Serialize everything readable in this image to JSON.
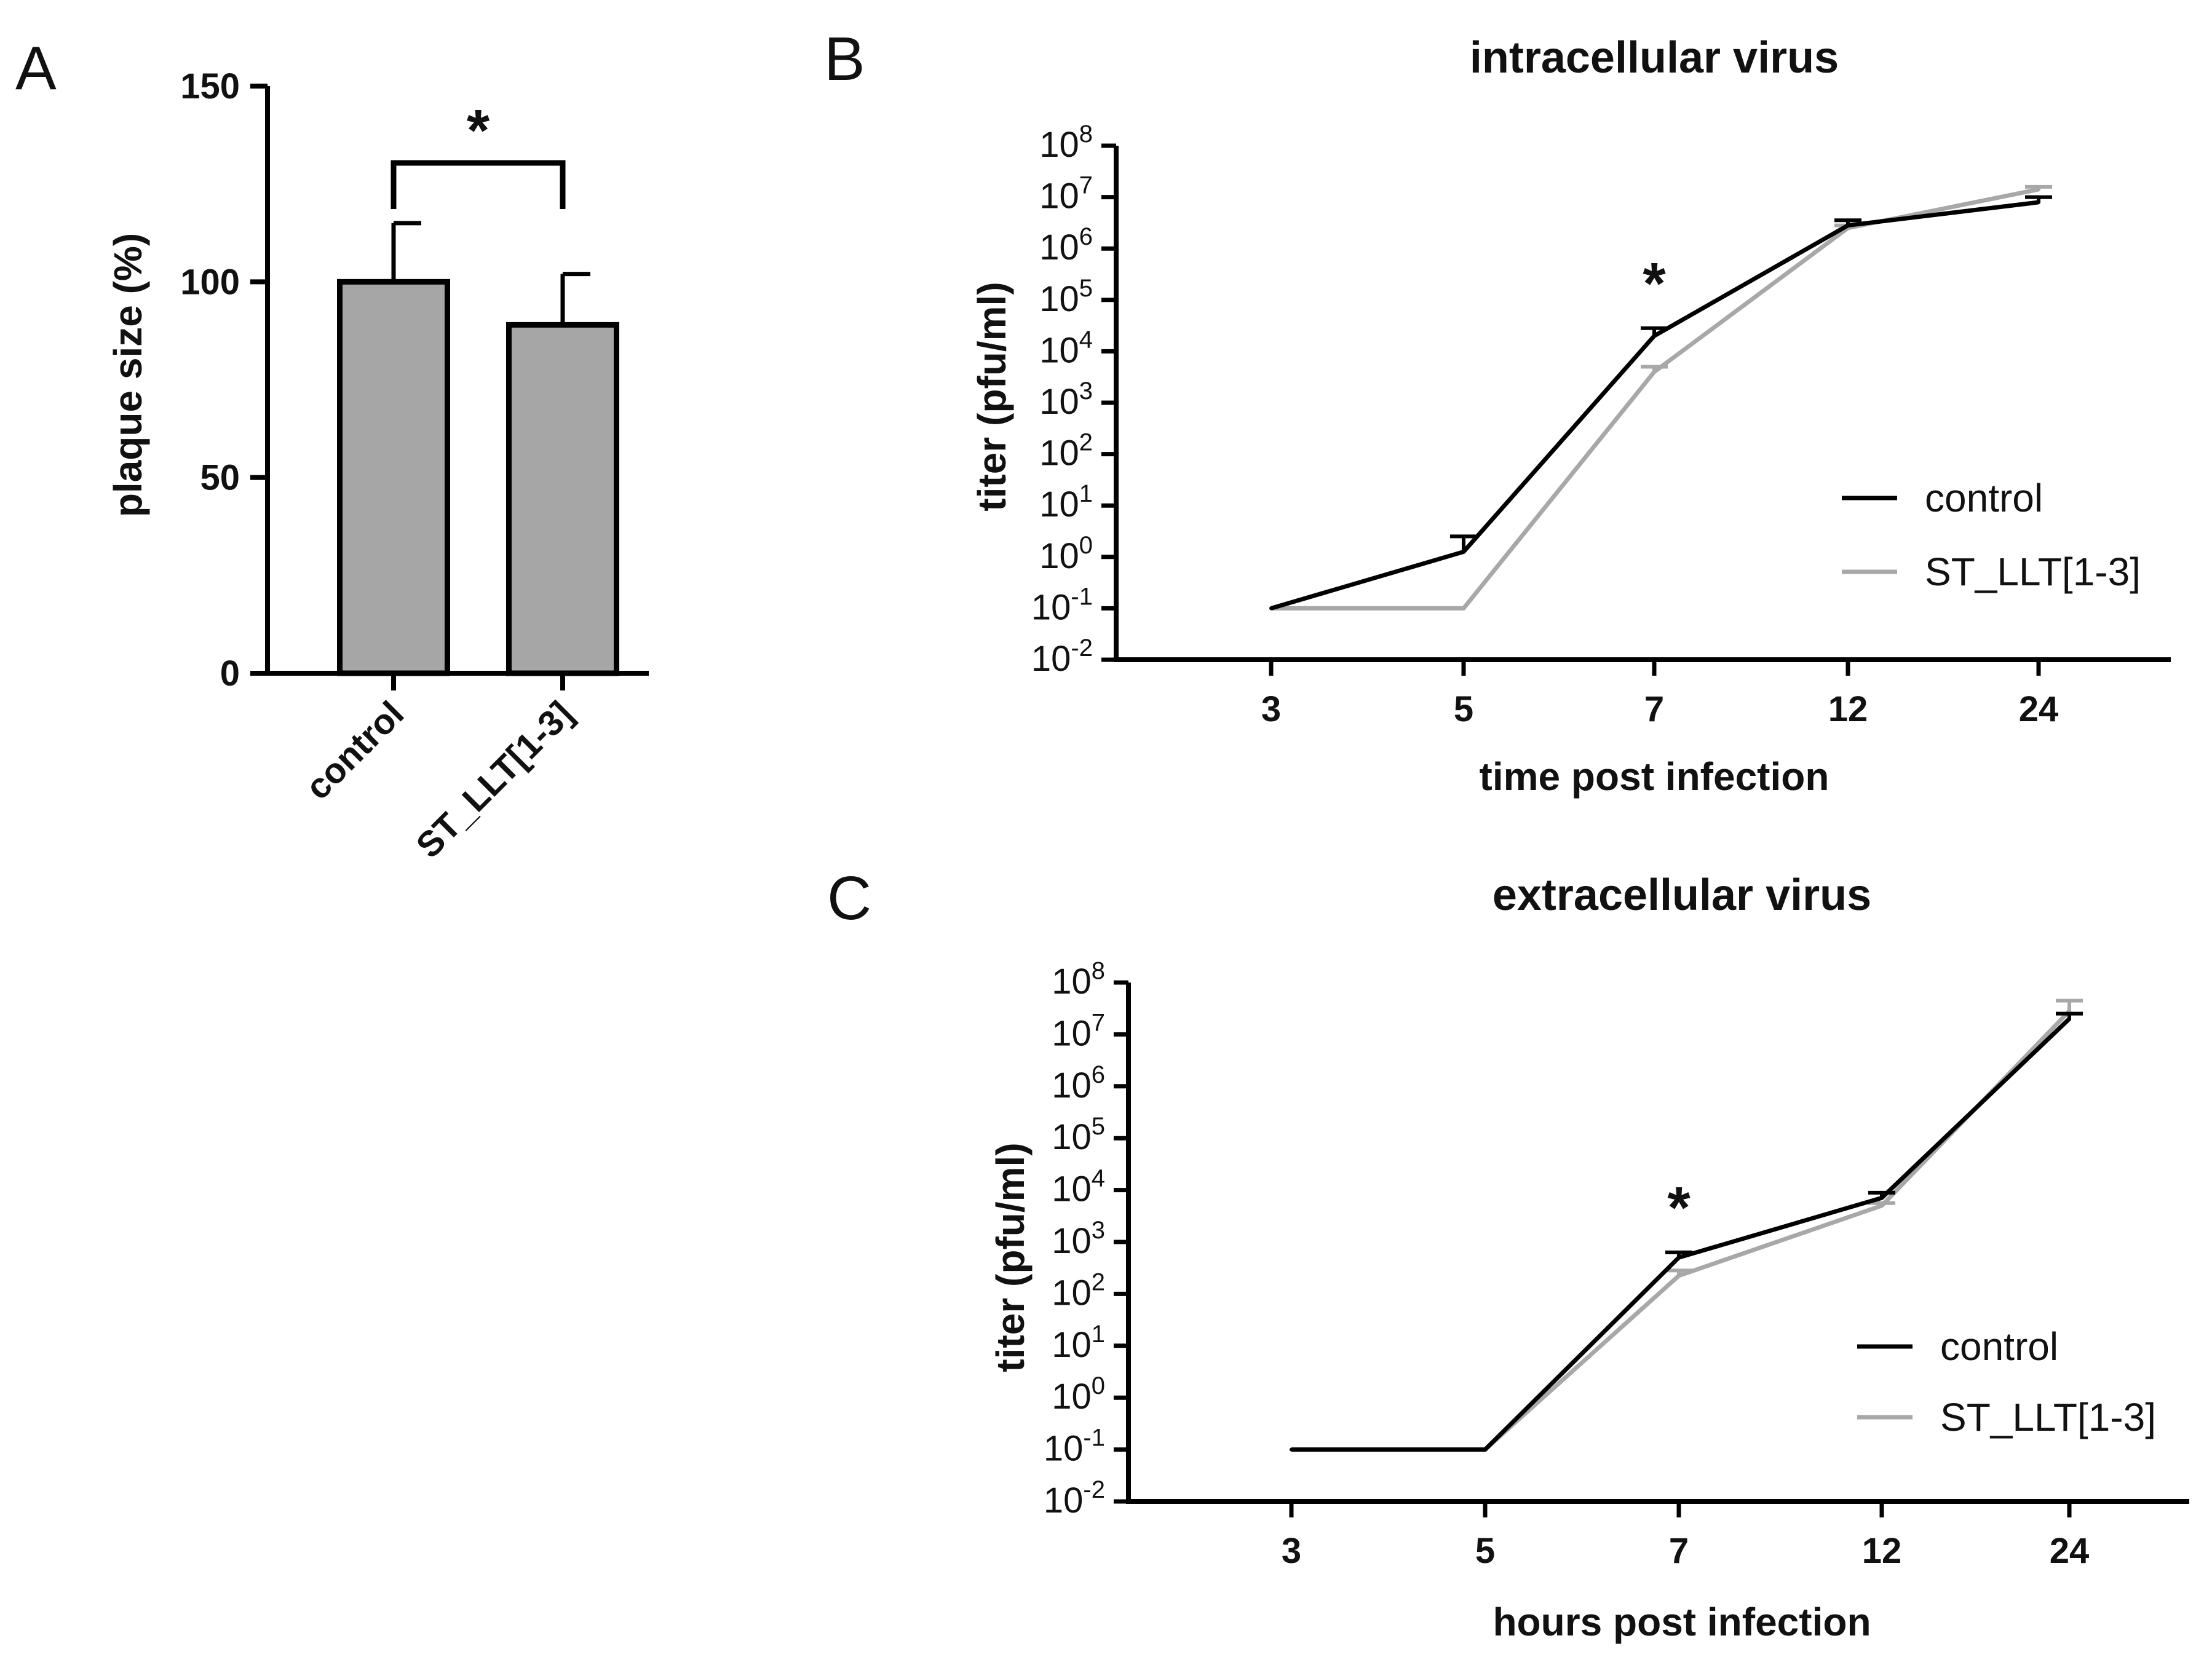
{
  "chart_data": [
    {
      "panel": "A",
      "type": "bar",
      "title": "",
      "categories": [
        "control",
        "ST_LLT[1-3]"
      ],
      "values": [
        100,
        89
      ],
      "error": [
        15,
        13
      ],
      "ylabel": "plaque size (%)",
      "xlabel": "",
      "ylim": [
        0,
        150
      ],
      "yticks": [
        "0",
        "50",
        "100",
        "150"
      ],
      "significance": "*",
      "colors": {
        "bar": "#a6a6a6",
        "edge": "#000000"
      }
    },
    {
      "panel": "B",
      "type": "line",
      "title": "intracellular virus",
      "xlabel": "time post infection",
      "ylabel": "titer (pfu/ml)",
      "categories": [
        "3",
        "5",
        "7",
        "12",
        "24"
      ],
      "yscale": "log",
      "ylim_exp": [
        -2,
        8
      ],
      "ytick_exps": [
        "-2",
        "-1",
        "0",
        "1",
        "2",
        "3",
        "4",
        "5",
        "6",
        "7",
        "8"
      ],
      "series": [
        {
          "name": "control",
          "color": "#000000",
          "values_log10": [
            -1,
            0.1,
            4.3,
            6.45,
            6.9
          ],
          "err_log10": [
            0,
            0.3,
            0.15,
            0.1,
            0.1
          ]
        },
        {
          "name": "ST_LLT[1-3]",
          "color": "#a8a8a8",
          "values_log10": [
            -1,
            -1,
            3.6,
            6.4,
            7.15
          ],
          "err_log10": [
            0,
            0,
            0.1,
            0.05,
            0.05
          ]
        }
      ],
      "significance_at": "7",
      "significance": "*",
      "legend": [
        "control",
        "ST_LLT[1-3]"
      ]
    },
    {
      "panel": "C",
      "type": "line",
      "title": "extracellular virus",
      "xlabel": "hours post infection",
      "ylabel": "titer (pfu/ml)",
      "categories": [
        "3",
        "5",
        "7",
        "12",
        "24"
      ],
      "yscale": "log",
      "ylim_exp": [
        -2,
        8
      ],
      "ytick_exps": [
        "-2",
        "-1",
        "0",
        "1",
        "2",
        "3",
        "4",
        "5",
        "6",
        "7",
        "8"
      ],
      "series": [
        {
          "name": "control",
          "color": "#000000",
          "values_log10": [
            -1,
            -1,
            2.7,
            3.85,
            7.3
          ],
          "err_log10": [
            0,
            0,
            0.1,
            0.1,
            0.1
          ]
        },
        {
          "name": "ST_LLT[1-3]",
          "color": "#a8a8a8",
          "values_log10": [
            -1,
            -1,
            2.35,
            3.7,
            7.45
          ],
          "err_log10": [
            0,
            0,
            0.1,
            0.05,
            0.2
          ]
        }
      ],
      "significance_at": "7",
      "significance": "*",
      "legend": [
        "control",
        "ST_LLT[1-3]"
      ]
    }
  ],
  "panel_letters": [
    "A",
    "B",
    "C"
  ],
  "tick_base": "10"
}
